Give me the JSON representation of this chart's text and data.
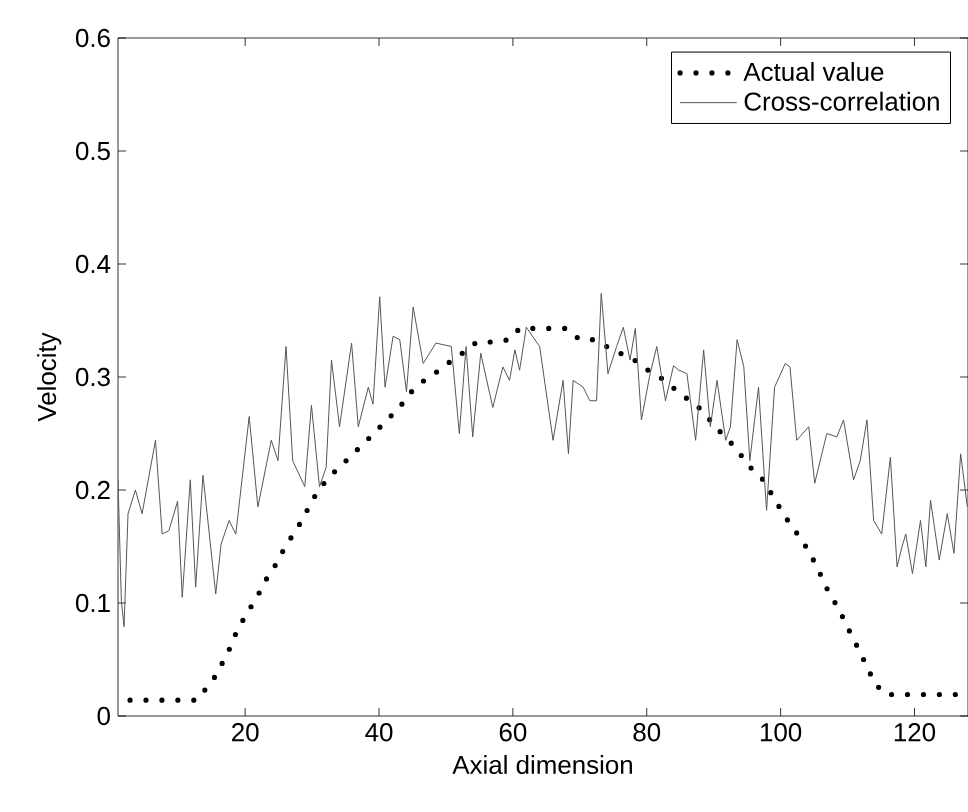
{
  "chart_data": {
    "type": "line",
    "xlabel": "Axial dimension",
    "ylabel": "Velocity",
    "xlim": [
      1,
      128
    ],
    "ylim": [
      0,
      0.6
    ],
    "xticks": [
      20,
      40,
      60,
      80,
      100,
      120
    ],
    "yticks": [
      0,
      0.1,
      0.2,
      0.3,
      0.4,
      0.5,
      0.6
    ],
    "grid": false,
    "legend": "top right",
    "series": [
      {
        "name": "Actual value",
        "color": "#000000",
        "line_style": "dotted",
        "x": [
          2.8,
          5.3,
          7.8,
          10.3,
          12.8,
          15.3,
          16.6,
          17.8,
          18.8,
          19.9,
          21.1,
          22.3,
          23.5,
          24.7,
          25.9,
          27.2,
          28.7,
          29.9,
          31.4,
          32.7,
          34.2,
          35.7,
          37.2,
          38.7,
          40.2,
          41.7,
          43.1,
          44.3,
          45.8,
          47.3,
          49.1,
          50.9,
          52.7,
          54.6,
          56.8,
          59.5,
          61.0,
          63.0,
          65.7,
          68.0,
          70.0,
          72.0,
          74.0,
          76.0,
          77.5,
          78.8,
          80.2,
          81.7,
          83.3,
          84.8,
          86.7,
          88.2,
          89.7,
          91.2,
          92.7,
          94.2,
          95.9,
          97.4,
          98.8,
          100.1,
          101.4,
          102.9,
          104.4,
          105.9,
          107.3,
          108.7,
          109.7,
          110.9,
          112.0,
          113.1,
          114.2,
          115.7,
          118.1,
          120.4,
          122.9,
          125.4,
          127.9
        ],
        "values": [
          0.014,
          0.014,
          0.014,
          0.014,
          0.014,
          0.033,
          0.047,
          0.061,
          0.076,
          0.087,
          0.099,
          0.111,
          0.125,
          0.135,
          0.149,
          0.161,
          0.175,
          0.19,
          0.203,
          0.213,
          0.22,
          0.23,
          0.238,
          0.247,
          0.256,
          0.265,
          0.273,
          0.284,
          0.292,
          0.3,
          0.306,
          0.315,
          0.322,
          0.331,
          0.331,
          0.333,
          0.343,
          0.343,
          0.343,
          0.343,
          0.333,
          0.333,
          0.327,
          0.321,
          0.318,
          0.312,
          0.306,
          0.301,
          0.294,
          0.286,
          0.278,
          0.271,
          0.26,
          0.25,
          0.241,
          0.23,
          0.217,
          0.209,
          0.195,
          0.182,
          0.17,
          0.158,
          0.144,
          0.126,
          0.108,
          0.095,
          0.082,
          0.068,
          0.055,
          0.041,
          0.028,
          0.019,
          0.019,
          0.019,
          0.019,
          0.019,
          0.019
        ]
      },
      {
        "name": "Cross-correlation",
        "color": "#555555",
        "line_style": "solid",
        "x": [
          1,
          1.5,
          1.9,
          2.5,
          3.6,
          4.6,
          6.6,
          7.6,
          8.6,
          9.9,
          10.6,
          11.8,
          12.6,
          13.7,
          15.6,
          16.4,
          17.6,
          18.6,
          20.6,
          21.9,
          23.9,
          24.9,
          26.1,
          27.1,
          28.9,
          29.9,
          31.1,
          32.1,
          32.9,
          34.1,
          35.9,
          36.9,
          38.4,
          39.1,
          40.1,
          40.9,
          42.1,
          43.1,
          44.1,
          45.1,
          46.6,
          48.5,
          50.8,
          52.0,
          53.0,
          54.0,
          55.2,
          57.0,
          58.5,
          59.5,
          60.3,
          61.0,
          62.0,
          64.0,
          66.0,
          67.5,
          68.3,
          69.0,
          70.5,
          71.5,
          72.5,
          73.2,
          74.2,
          75.5,
          76.5,
          77.5,
          78.3,
          79.2,
          80.5,
          81.5,
          82.8,
          84.0,
          84.8,
          86.0,
          87.3,
          88.5,
          89.5,
          90.5,
          91.8,
          92.5,
          93.5,
          94.5,
          95.4,
          96.7,
          97.9,
          99.1,
          100.7,
          101.4,
          102.4,
          104.2,
          105.1,
          106.9,
          108.4,
          109.4,
          110.9,
          111.9,
          112.9,
          113.9,
          115.1,
          116.4,
          117.4,
          118.1,
          118.7,
          119.7,
          120.9,
          121.7,
          122.4,
          123.7,
          124.9,
          125.9,
          126.9,
          127.9
        ],
        "values": [
          0.209,
          0.102,
          0.079,
          0.179,
          0.2,
          0.179,
          0.244,
          0.161,
          0.164,
          0.19,
          0.105,
          0.209,
          0.114,
          0.213,
          0.108,
          0.152,
          0.173,
          0.161,
          0.265,
          0.185,
          0.244,
          0.226,
          0.327,
          0.226,
          0.203,
          0.275,
          0.203,
          0.22,
          0.315,
          0.256,
          0.33,
          0.256,
          0.291,
          0.276,
          0.371,
          0.291,
          0.336,
          0.333,
          0.287,
          0.362,
          0.312,
          0.33,
          0.327,
          0.25,
          0.327,
          0.247,
          0.321,
          0.273,
          0.309,
          0.297,
          0.324,
          0.306,
          0.344,
          0.327,
          0.244,
          0.297,
          0.232,
          0.297,
          0.291,
          0.279,
          0.279,
          0.374,
          0.303,
          0.327,
          0.344,
          0.315,
          0.343,
          0.262,
          0.303,
          0.327,
          0.279,
          0.31,
          0.306,
          0.303,
          0.244,
          0.324,
          0.256,
          0.297,
          0.244,
          0.256,
          0.333,
          0.309,
          0.226,
          0.291,
          0.182,
          0.291,
          0.312,
          0.309,
          0.244,
          0.256,
          0.206,
          0.25,
          0.247,
          0.262,
          0.209,
          0.226,
          0.262,
          0.173,
          0.161,
          0.229,
          0.132,
          0.149,
          0.161,
          0.126,
          0.173,
          0.132,
          0.191,
          0.138,
          0.179,
          0.144,
          0.232,
          0.185
        ]
      }
    ]
  }
}
